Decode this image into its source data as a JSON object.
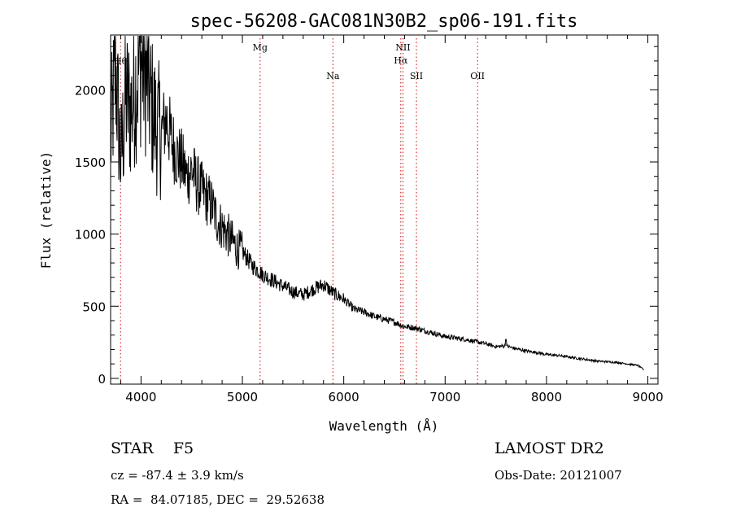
{
  "chart_data": {
    "type": "line",
    "title": "spec-56208-GAC081N30B2_sp06-191.fits",
    "xlabel": "Wavelength (Å)",
    "ylabel": "Flux (relative)",
    "xlim": [
      3700,
      9100
    ],
    "ylim": [
      -40,
      2380
    ],
    "xticks": [
      4000,
      5000,
      6000,
      7000,
      8000,
      9000
    ],
    "yticks": [
      0,
      500,
      1000,
      1500,
      2000
    ],
    "line_color": "#000000",
    "marker_color": "#cc0000",
    "grid": false,
    "series": [
      {
        "x": [
          3700,
          3750,
          3800,
          3850,
          3900,
          3950,
          4000,
          4050,
          4100,
          4150,
          4200,
          4250,
          4300,
          4350,
          4400,
          4450,
          4500,
          4550,
          4600,
          4650,
          4700,
          4750,
          4800,
          4850,
          4900,
          4950,
          5000,
          5100,
          5200,
          5300,
          5400,
          5500,
          5600,
          5700,
          5800,
          5900,
          6000,
          6100,
          6200,
          6300,
          6400,
          6500,
          6600,
          6700,
          6800,
          6900,
          7000,
          7100,
          7200,
          7300,
          7400,
          7500,
          7600,
          7700,
          7800,
          7900,
          8000,
          8100,
          8200,
          8300,
          8400,
          8500,
          8600,
          8700,
          8800,
          8900,
          8960
        ],
        "y": [
          1650,
          2150,
          1500,
          1950,
          1850,
          2050,
          2200,
          2100,
          1900,
          1750,
          1700,
          1800,
          1650,
          1550,
          1500,
          1400,
          1450,
          1350,
          1300,
          1250,
          1200,
          1100,
          1050,
          1000,
          950,
          900,
          880,
          780,
          720,
          680,
          640,
          600,
          580,
          620,
          650,
          590,
          550,
          480,
          460,
          430,
          410,
          390,
          360,
          350,
          330,
          310,
          290,
          280,
          270,
          255,
          240,
          220,
          225,
          205,
          190,
          180,
          165,
          160,
          150,
          140,
          130,
          120,
          115,
          110,
          100,
          90,
          60
        ]
      }
    ],
    "lines": [
      {
        "label": "Hθ",
        "wavelength": 3798
      },
      {
        "label": "Mg",
        "wavelength": 5175
      },
      {
        "label": "Na",
        "wavelength": 5893
      },
      {
        "label": "NII",
        "wavelength": 6584
      },
      {
        "label": "Hα",
        "wavelength": 6563
      },
      {
        "label": "SII",
        "wavelength": 6717
      },
      {
        "label": "OII",
        "wavelength": 7320
      }
    ]
  },
  "info": {
    "object_class": "STAR    F5",
    "survey": "LAMOST DR2",
    "cz": "cz = -87.4 ± 3.9 km/s",
    "obs_date": "Obs-Date: 20121007",
    "radec": "RA =  84.07185, DEC =  29.52638"
  }
}
